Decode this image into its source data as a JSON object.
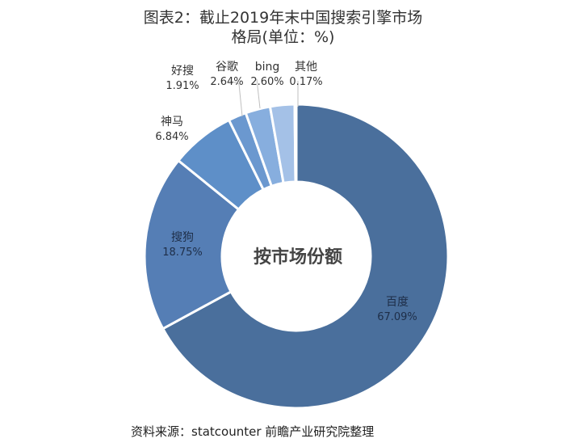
{
  "title_line1": "图表2：截止2019年末中国搜索引擎市场",
  "title_line2": "格局(单位：%)",
  "center_label": "按市场份额",
  "source": "资料来源：statcounter 前瞻产业研究院整理",
  "chart_data": {
    "type": "pie",
    "title": "图表2：截止2019年末中国搜索引擎市场格局(单位：%)",
    "donut": true,
    "categories": [
      "百度",
      "搜狗",
      "神马",
      "好搜",
      "谷歌",
      "bing",
      "其他"
    ],
    "values": [
      67.09,
      18.75,
      6.84,
      1.91,
      2.64,
      2.6,
      0.17
    ],
    "value_labels": [
      "67.09%",
      "18.75%",
      "6.84%",
      "1.91%",
      "2.64%",
      "2.60%",
      "0.17%"
    ],
    "colors": [
      "#4a6f9c",
      "#557eb5",
      "#5e8fc8",
      "#6b98cf",
      "#87aede",
      "#a4c1e7",
      "#c2d5ef"
    ],
    "center_text": "按市场份额",
    "legend": "none"
  }
}
